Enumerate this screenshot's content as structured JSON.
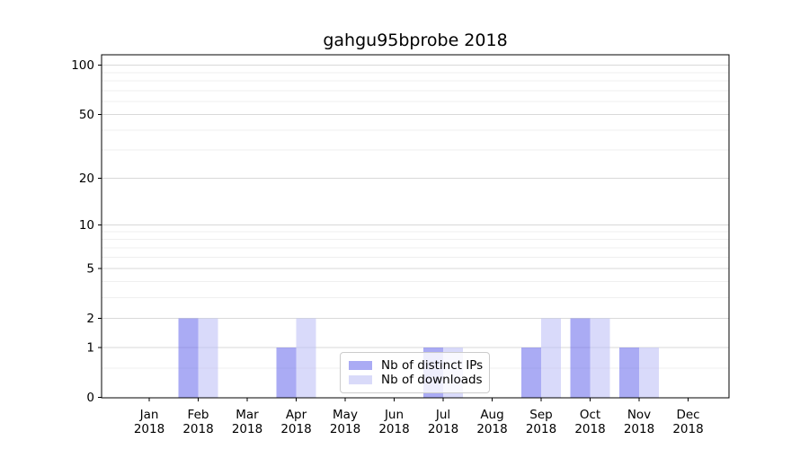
{
  "chart_data": {
    "type": "bar",
    "title": "gahgu95bprobe 2018",
    "categories": [
      "Jan",
      "Feb",
      "Mar",
      "Apr",
      "May",
      "Jun",
      "Jul",
      "Aug",
      "Sep",
      "Oct",
      "Nov",
      "Dec"
    ],
    "category_year": "2018",
    "series": [
      {
        "name": "Nb of distinct IPs",
        "color": "#aaabf4",
        "fill": "rgba(100,102,235,0.55)",
        "values": [
          0,
          2,
          0,
          1,
          0,
          0,
          1,
          0,
          1,
          2,
          1,
          0
        ]
      },
      {
        "name": "Nb of downloads",
        "color": "#d9daf9",
        "fill": "rgba(186,188,246,0.55)",
        "values": [
          0,
          2,
          0,
          2,
          0,
          0,
          1,
          0,
          2,
          2,
          1,
          0
        ]
      }
    ],
    "yscale": "log1p",
    "yticks": [
      0,
      1,
      2,
      5,
      10,
      20,
      50,
      100
    ],
    "minor_gridlines": [
      0.5,
      3,
      4,
      6,
      7,
      8,
      9,
      30,
      40,
      60,
      70,
      80,
      90
    ],
    "ylim": [
      0,
      115
    ],
    "grid": "horizontal",
    "legend_position": "lower center",
    "colors": {
      "spine": "#000000",
      "major_gridline": "#d9d9d9",
      "minor_gridline": "#efefef",
      "background": "#ffffff"
    }
  }
}
